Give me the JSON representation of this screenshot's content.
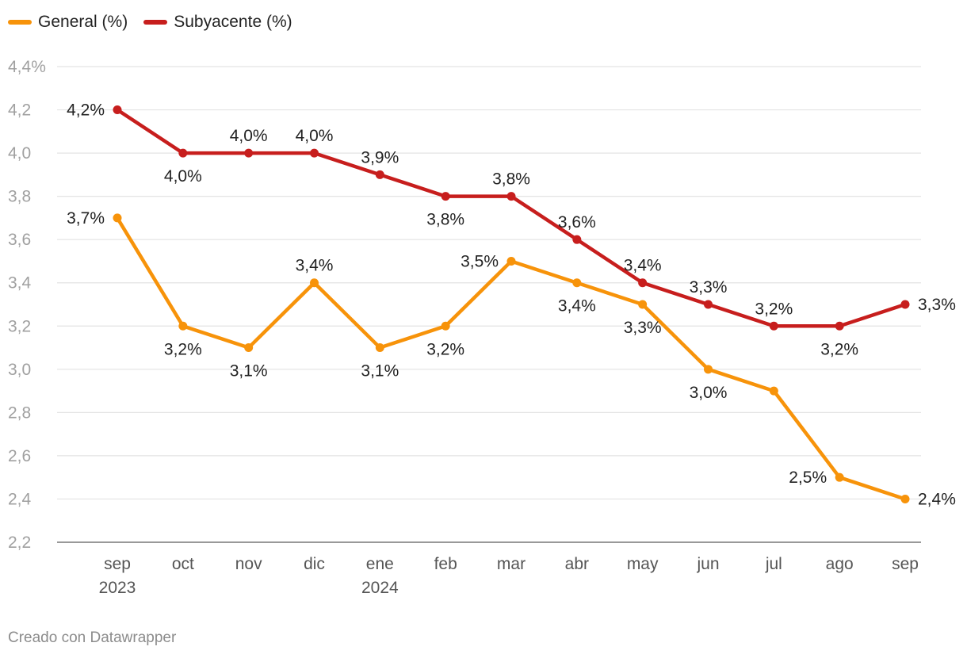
{
  "legend": [
    {
      "label": "General (%)",
      "color": "#f7930a"
    },
    {
      "label": "Subyacente (%)",
      "color": "#c71e1d"
    }
  ],
  "credit": "Creado con Datawrapper",
  "chart_data": {
    "type": "line",
    "categories": [
      "sep 2023",
      "oct",
      "nov",
      "dic",
      "ene 2024",
      "feb",
      "mar",
      "abr",
      "may",
      "jun",
      "jul",
      "ago",
      "sep"
    ],
    "x_tick_labels": [
      [
        "sep",
        "2023"
      ],
      [
        "oct"
      ],
      [
        "nov"
      ],
      [
        "dic"
      ],
      [
        "ene",
        "2024"
      ],
      [
        "feb"
      ],
      [
        "mar"
      ],
      [
        "abr"
      ],
      [
        "may"
      ],
      [
        "jun"
      ],
      [
        "jul"
      ],
      [
        "ago"
      ],
      [
        "sep"
      ]
    ],
    "y_ticks": [
      2.2,
      2.4,
      2.6,
      2.8,
      3.0,
      3.2,
      3.4,
      3.6,
      3.8,
      4.0,
      4.2,
      4.4
    ],
    "y_tick_labels": [
      "2,2",
      "2,4",
      "2,6",
      "2,8",
      "3,0",
      "3,2",
      "3,4",
      "3,6",
      "3,8",
      "4,0",
      "4,2",
      "4,4%"
    ],
    "ylim": [
      2.2,
      4.4
    ],
    "grid": true,
    "legend_position": "top-left",
    "series": [
      {
        "name": "General (%)",
        "color": "#f7930a",
        "values": [
          3.7,
          3.2,
          3.1,
          3.4,
          3.1,
          3.2,
          3.5,
          3.4,
          3.3,
          3.0,
          2.9,
          2.5,
          2.4
        ],
        "labels": [
          "3,7%",
          "3,2%",
          "3,1%",
          "3,4%",
          "3,1%",
          "3,2%",
          "3,5%",
          "3,4%",
          "3,3%",
          "3,0%",
          "",
          "2,5%",
          "2,4%"
        ],
        "label_pos": [
          "left",
          "below",
          "below",
          "above",
          "below",
          "below",
          "left",
          "below",
          "below",
          "below",
          "none",
          "left",
          "right"
        ]
      },
      {
        "name": "Subyacente (%)",
        "color": "#c71e1d",
        "values": [
          4.2,
          4.0,
          4.0,
          4.0,
          3.9,
          3.8,
          3.8,
          3.6,
          3.4,
          3.3,
          3.2,
          3.2,
          3.3
        ],
        "labels": [
          "4,2%",
          "4,0%",
          "4,0%",
          "4,0%",
          "3,9%",
          "3,8%",
          "3,8%",
          "3,6%",
          "3,4%",
          "3,3%",
          "3,2%",
          "3,2%",
          "3,3%"
        ],
        "label_pos": [
          "left",
          "below",
          "above",
          "above",
          "above",
          "below",
          "above",
          "above",
          "above",
          "above",
          "above",
          "below",
          "right"
        ]
      }
    ]
  }
}
